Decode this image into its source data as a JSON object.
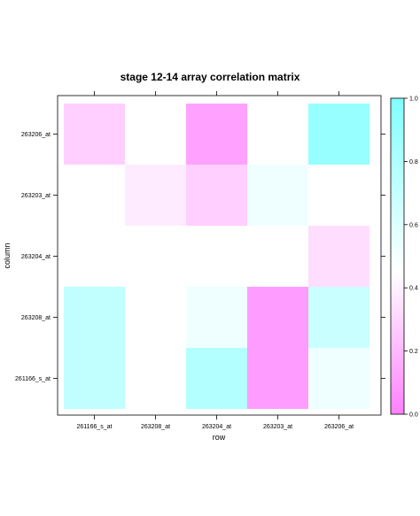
{
  "chart_data": {
    "type": "heatmap",
    "title": "stage 12-14 array correlation matrix",
    "xlabel": "row",
    "ylabel": "column",
    "x_categories": [
      "261166_s_at",
      "263208_at",
      "263204_at",
      "263203_at",
      "263206_at"
    ],
    "y_categories": [
      "261166_s_at",
      "263208_at",
      "263204_at",
      "263203_at",
      "263206_at"
    ],
    "values": [
      [
        0.72,
        0.45,
        0.78,
        0.1,
        0.52
      ],
      [
        0.72,
        0.45,
        0.52,
        0.1,
        0.68
      ],
      [
        0.45,
        0.45,
        0.45,
        0.45,
        0.33
      ],
      [
        0.45,
        0.38,
        0.28,
        0.52,
        0.45
      ],
      [
        0.28,
        0.45,
        0.12,
        0.45,
        0.9
      ]
    ],
    "colorbar": {
      "range": [
        0.0,
        1.0
      ],
      "ticks": [
        "0.0",
        "0.2",
        "0.4",
        "0.6",
        "0.8",
        "1.0"
      ],
      "low_color": "#ff80ff",
      "mid_color": "#ffffff",
      "high_color": "#80ffff"
    }
  }
}
